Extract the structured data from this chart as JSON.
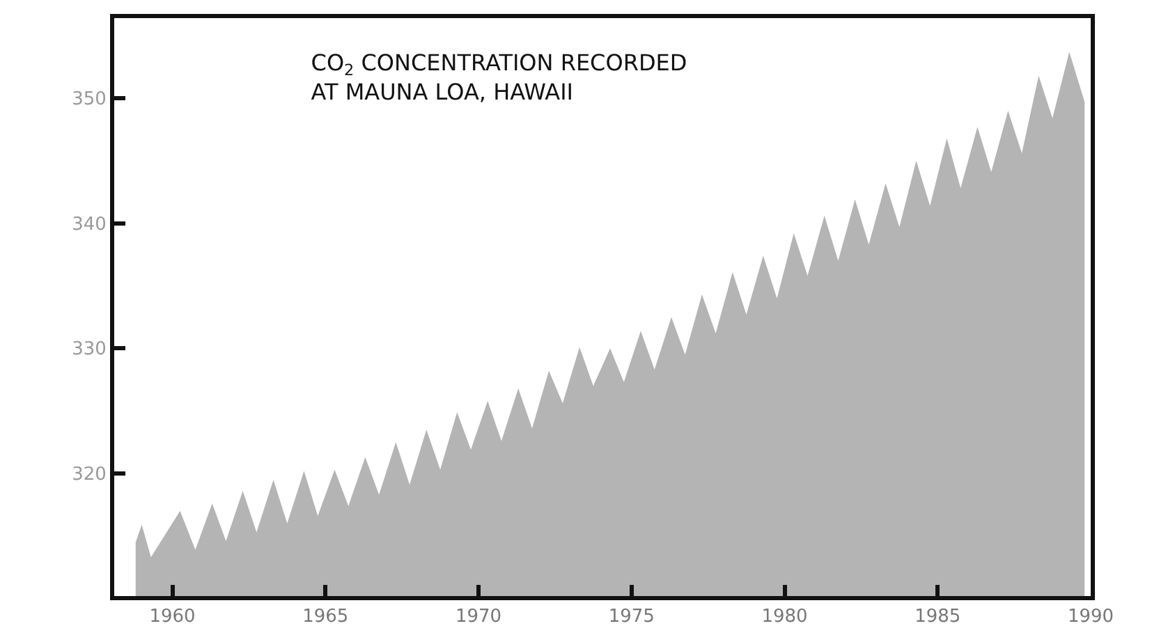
{
  "chart_data": {
    "type": "area",
    "title": "CO$_{2}$ CONCENTRATION RECORDED\nAT MAUNA LOA, HAWAII",
    "x": [
      1958.8,
      1959.0,
      1959.3,
      1960.25,
      1960.75,
      1961.3,
      1961.75,
      1962.3,
      1962.75,
      1963.3,
      1963.75,
      1964.3,
      1964.75,
      1965.3,
      1965.75,
      1966.3,
      1966.75,
      1967.3,
      1967.75,
      1968.3,
      1968.75,
      1969.3,
      1969.75,
      1970.3,
      1970.75,
      1971.3,
      1971.75,
      1972.3,
      1972.75,
      1973.3,
      1973.75,
      1974.3,
      1974.75,
      1975.3,
      1975.75,
      1976.3,
      1976.75,
      1977.3,
      1977.75,
      1978.3,
      1978.75,
      1979.3,
      1979.75,
      1980.3,
      1980.75,
      1981.3,
      1981.75,
      1982.3,
      1982.75,
      1983.3,
      1983.75,
      1984.3,
      1984.75,
      1985.3,
      1985.75,
      1986.3,
      1986.75,
      1987.3,
      1987.75,
      1988.3,
      1988.75,
      1989.3,
      1989.8
    ],
    "series": [
      {
        "color": "#b4b4b4",
        "values": [
          314.5,
          315.9,
          313.3,
          317.0,
          313.9,
          317.6,
          314.6,
          318.6,
          315.3,
          319.5,
          316.0,
          320.2,
          316.6,
          320.3,
          317.4,
          321.3,
          318.3,
          322.5,
          319.1,
          323.5,
          320.3,
          324.9,
          321.9,
          325.8,
          322.6,
          326.8,
          323.6,
          328.2,
          325.6,
          330.1,
          327.0,
          330.0,
          327.3,
          331.4,
          328.3,
          332.5,
          329.5,
          334.3,
          331.2,
          336.1,
          332.7,
          337.4,
          334.0,
          339.2,
          335.8,
          340.6,
          337.0,
          341.9,
          338.3,
          343.2,
          339.7,
          345.0,
          341.4,
          346.8,
          342.8,
          347.7,
          344.1,
          349.0,
          345.6,
          351.8,
          348.4,
          353.7,
          349.7
        ]
      }
    ],
    "xlim": [
      1958.1,
      1990.0
    ],
    "ylim": [
      310.2,
      356.4
    ],
    "xticks": [
      1960,
      1965,
      1970,
      1975,
      1980,
      1985,
      1990
    ],
    "yticks": [
      320,
      330,
      340,
      350
    ]
  }
}
